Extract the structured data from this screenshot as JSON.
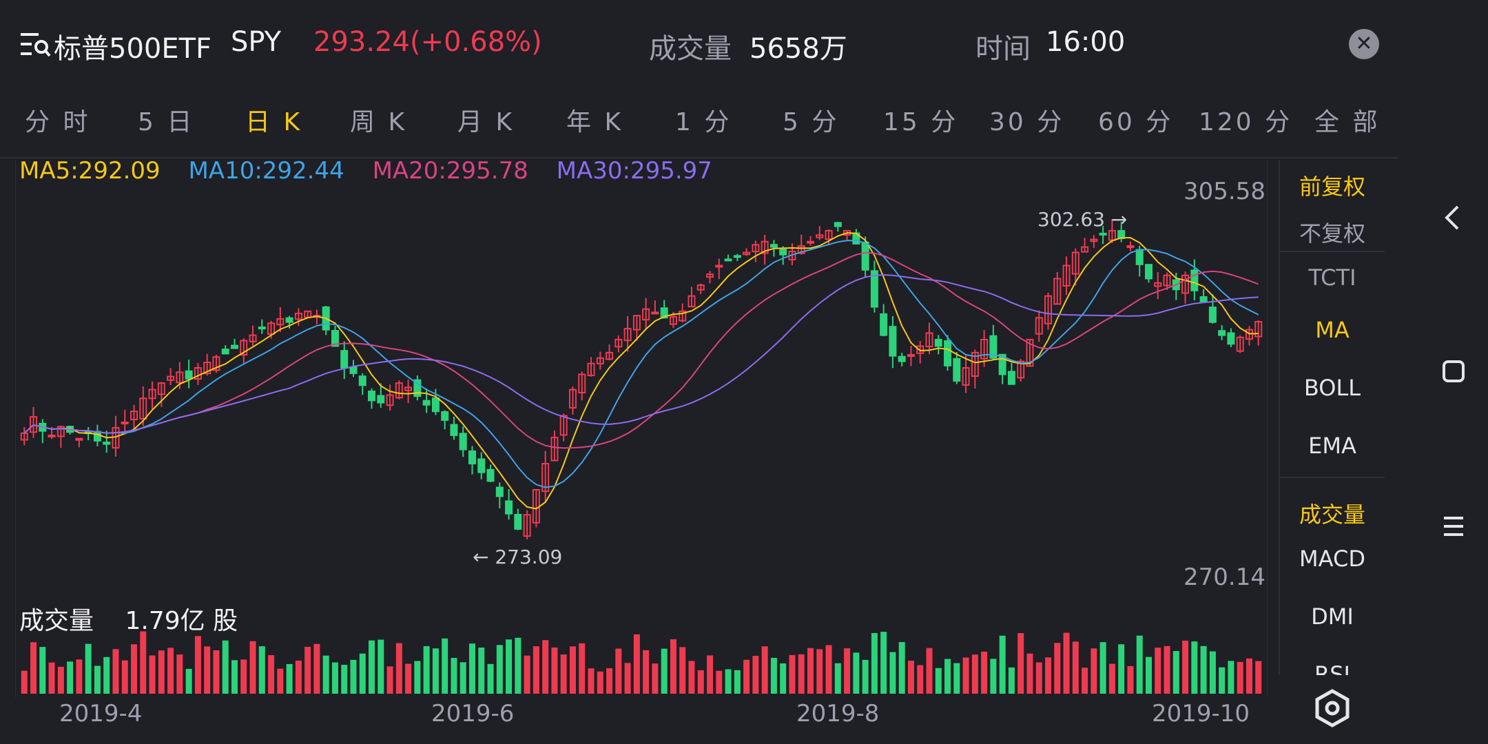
{
  "header": {
    "title": "标普500ETF",
    "symbol": "SPY",
    "price_change": "293.24(+0.68%)",
    "volume_label": "成交量",
    "volume_value": "5658万",
    "time_label": "时间",
    "time_value": "16:00"
  },
  "tabs": [
    "分 时",
    "5 日",
    "日 K",
    "周 K",
    "月 K",
    "年 K",
    "1 分",
    "5 分",
    "15 分",
    "30 分",
    "60 分",
    "120 分",
    "全 部"
  ],
  "active_tab_index": 2,
  "ma_legend": {
    "ma5": "MA5:292.09",
    "ma10": "MA10:292.44",
    "ma20": "MA20:295.78",
    "ma30": "MA30:295.97"
  },
  "chart_labels": {
    "high": "305.58",
    "low": "270.14",
    "peak": "302.63 →",
    "trough": "← 273.09"
  },
  "volume": {
    "title": "成交量",
    "value": "1.79亿 股"
  },
  "dates": [
    "2019-4",
    "2019-6",
    "2019-8",
    "2019-10"
  ],
  "side_panel": {
    "items": [
      "前复权",
      "不复权",
      "TCTI",
      "MA",
      "BOLL",
      "EMA",
      "成交量",
      "MACD",
      "DMI",
      "RSI"
    ]
  },
  "colors": {
    "up": "#ef3b4f",
    "down": "#2bd47a",
    "accent": "#f7c815",
    "ma5": "#f7c815",
    "ma10": "#3ea4e6",
    "ma20": "#d9457f",
    "ma30": "#8b6df0"
  },
  "icons": [
    "menu-search-icon",
    "close-icon",
    "back-icon",
    "home-icon",
    "recents-icon",
    "settings-icon"
  ],
  "chart_data": {
    "type": "candlestick",
    "price_range": [
      270.14,
      305.58
    ],
    "closes": [
      283,
      284.5,
      283.2,
      282.8,
      283.6,
      283.1,
      282.5,
      283,
      282.3,
      282,
      283.5,
      284,
      285,
      286.2,
      287,
      287.6,
      288.2,
      288.6,
      288,
      289,
      289.5,
      290,
      290.3,
      290.8,
      291.5,
      292,
      292.6,
      293.1,
      293.5,
      293.2,
      294,
      294.2,
      293.8,
      292.5,
      291,
      289,
      288.5,
      287.4,
      286,
      285.8,
      286.5,
      287.6,
      287.2,
      286.4,
      285.6,
      285,
      284.2,
      282.8,
      281.5,
      280.2,
      279.4,
      278.6,
      277.2,
      275.6,
      274.2,
      275.5,
      277.8,
      280.2,
      282.6,
      284.6,
      287,
      288.4,
      289.4,
      289.9,
      290.4,
      291.6,
      292.6,
      293.8,
      294.4,
      294.1,
      293.6,
      293.7,
      294.2,
      295.6,
      296.6,
      297.6,
      298.4,
      298.9,
      299.2,
      299.6,
      300.3,
      300.6,
      300.1,
      299.4,
      299.7,
      300.2,
      300.6,
      301.2,
      301.6,
      302,
      301.6,
      300.4,
      298,
      294.6,
      292,
      290.1,
      289.6,
      290.2,
      291,
      292.2,
      291,
      289.2,
      287.8,
      289,
      290.4,
      291.6,
      289.9,
      288.4,
      287.5,
      289.6,
      291.6,
      293.6,
      295.6,
      297.2,
      298.4,
      299.6,
      300.1,
      300.8,
      301.3,
      301.6,
      300.9,
      300.2,
      298.5,
      297.2,
      296.8,
      297.5,
      296.2,
      297.5,
      296.1,
      295.1,
      293.2,
      292,
      291.2,
      291.8,
      292.5,
      293.24
    ],
    "volume_unit": "亿 股",
    "last_volume": 1.79,
    "ma_values": {
      "MA5": 292.09,
      "MA10": 292.44,
      "MA20": 295.78,
      "MA30": 295.97
    },
    "x_ticks": [
      "2019-4",
      "2019-6",
      "2019-8",
      "2019-10"
    ]
  }
}
